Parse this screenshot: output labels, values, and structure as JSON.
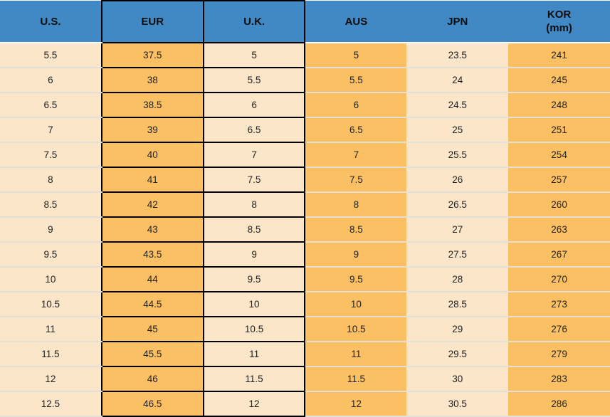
{
  "header": {
    "cells": [
      {
        "label": "U.S."
      },
      {
        "label": "EUR"
      },
      {
        "label": "U.K."
      },
      {
        "label": "AUS"
      },
      {
        "label": "JPN"
      },
      {
        "label": "KOR",
        "sub": "(mm)"
      }
    ]
  },
  "colors": {
    "header_blue": "#4189C5",
    "cream_cell": "#FCE6C9",
    "orange_cell": "#FBC063",
    "cell_border_black": "#000000",
    "row_separator": "#E5E0D5",
    "header_separator_white": "#FFFFFF",
    "header_text": "#0D0D0D",
    "body_text": "#222222"
  },
  "chart_data": {
    "type": "table",
    "columns": [
      "U.S.",
      "EUR",
      "U.K.",
      "AUS",
      "JPN",
      "KOR (mm)"
    ],
    "rows": [
      [
        "5.5",
        "37.5",
        "5",
        "5",
        "23.5",
        "241"
      ],
      [
        "6",
        "38",
        "5.5",
        "5.5",
        "24",
        "245"
      ],
      [
        "6.5",
        "38.5",
        "6",
        "6",
        "24.5",
        "248"
      ],
      [
        "7",
        "39",
        "6.5",
        "6.5",
        "25",
        "251"
      ],
      [
        "7.5",
        "40",
        "7",
        "7",
        "25.5",
        "254"
      ],
      [
        "8",
        "41",
        "7.5",
        "7.5",
        "26",
        "257"
      ],
      [
        "8.5",
        "42",
        "8",
        "8",
        "26.5",
        "260"
      ],
      [
        "9",
        "43",
        "8.5",
        "8.5",
        "27",
        "263"
      ],
      [
        "9.5",
        "43.5",
        "9",
        "9",
        "27.5",
        "267"
      ],
      [
        "10",
        "44",
        "9.5",
        "9.5",
        "28",
        "270"
      ],
      [
        "10.5",
        "44.5",
        "10",
        "10",
        "28.5",
        "273"
      ],
      [
        "11",
        "45",
        "10.5",
        "10.5",
        "29",
        "276"
      ],
      [
        "11.5",
        "45.5",
        "11",
        "11",
        "29.5",
        "279"
      ],
      [
        "12",
        "46",
        "11.5",
        "11.5",
        "30",
        "283"
      ],
      [
        "12.5",
        "46.5",
        "12",
        "12",
        "30.5",
        "286"
      ]
    ]
  }
}
